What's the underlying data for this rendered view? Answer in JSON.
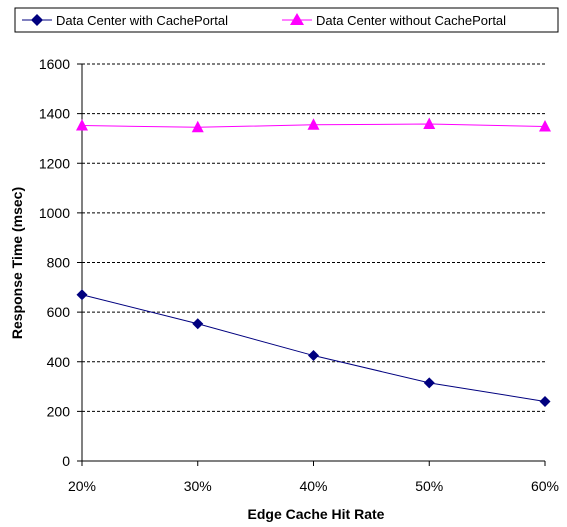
{
  "chart_data": {
    "type": "line",
    "x": [
      "20%",
      "30%",
      "40%",
      "50%",
      "60%"
    ],
    "xlabel": "Edge Cache Hit Rate",
    "ylabel": "Response Time (msec)",
    "ylim": [
      0,
      1600
    ],
    "yticks": [
      0,
      200,
      400,
      600,
      800,
      1000,
      1200,
      1400,
      1600
    ],
    "grid": true,
    "legend_position": "top",
    "series": [
      {
        "name": "Data Center with CachePortal",
        "values": [
          670,
          553,
          425,
          315,
          240
        ],
        "color": "#00007f",
        "marker": "diamond"
      },
      {
        "name": "Data Center without CachePortal",
        "values": [
          1352,
          1345,
          1355,
          1358,
          1348
        ],
        "color": "#ff00ff",
        "marker": "triangle"
      }
    ]
  }
}
